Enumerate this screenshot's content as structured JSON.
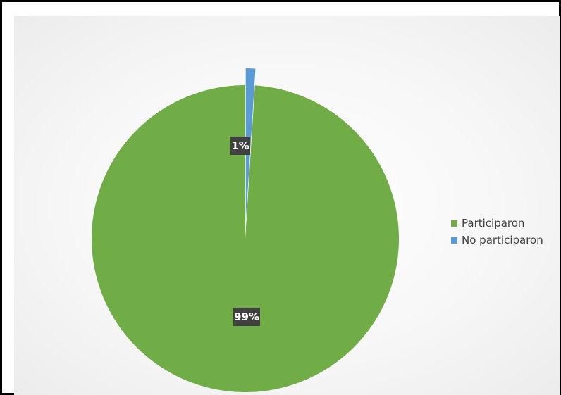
{
  "chart_data": {
    "type": "pie",
    "title": "",
    "slices": [
      {
        "label": "Participaron",
        "value": 99,
        "data_label": "99%",
        "color": "#70ad47"
      },
      {
        "label": "No participaron",
        "value": 1,
        "data_label": "1%",
        "color": "#5b9bd5"
      }
    ],
    "legend_position": "right",
    "data_label_background": "#404040",
    "data_label_color": "#ffffff"
  }
}
